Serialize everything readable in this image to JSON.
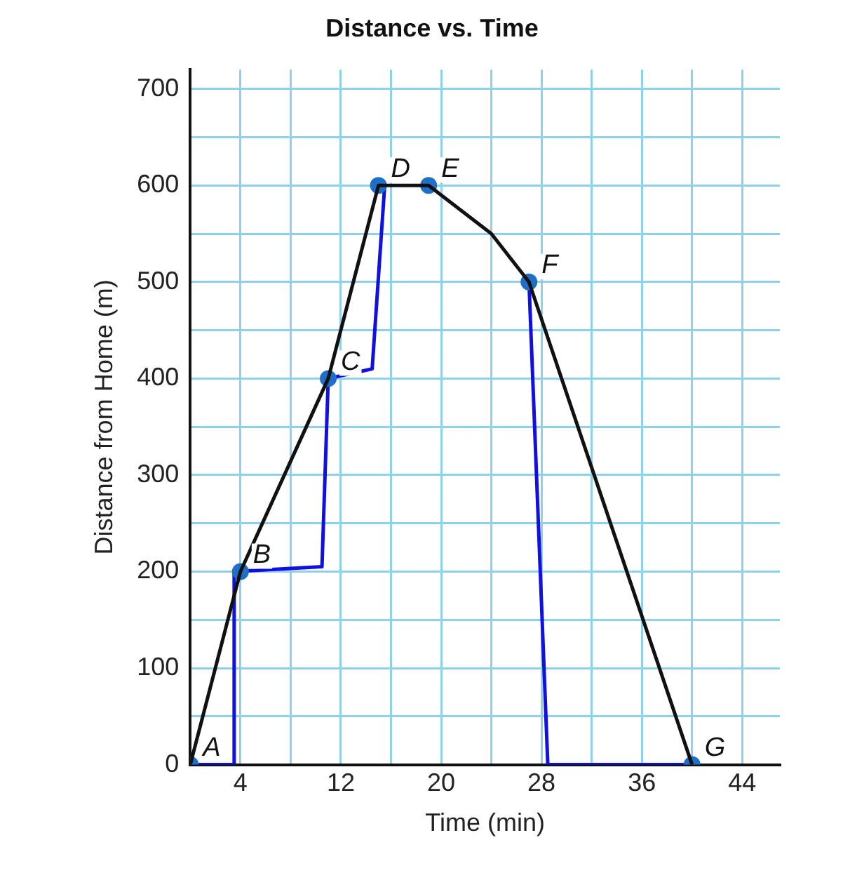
{
  "chart_data": {
    "type": "line",
    "title": "Distance vs. Time",
    "xlabel": "Time (min)",
    "ylabel": "Distance from Home (m)",
    "xlim": [
      0,
      47
    ],
    "ylim": [
      0,
      720
    ],
    "xticks": [
      {
        "value": 0,
        "label": null
      },
      4,
      {
        "value": 8,
        "label": null
      },
      12,
      {
        "value": 16,
        "label": null
      },
      20,
      {
        "value": 24,
        "label": null
      },
      28,
      {
        "value": 32,
        "label": null
      },
      36,
      {
        "value": 40,
        "label": null
      },
      44
    ],
    "yticks": [
      0,
      {
        "value": 50,
        "label": null
      },
      100,
      {
        "value": 150,
        "label": null
      },
      200,
      {
        "value": 250,
        "label": null
      },
      300,
      {
        "value": 350,
        "label": null
      },
      400,
      {
        "value": 450,
        "label": null
      },
      500,
      {
        "value": 550,
        "label": null
      },
      600,
      {
        "value": 650,
        "label": null
      },
      700
    ],
    "grid": true,
    "legend": false,
    "series": [
      {
        "color": "#111111",
        "marker": "none",
        "x": [
          0,
          4,
          11,
          15,
          19,
          24,
          27,
          40
        ],
        "values": [
          0,
          200,
          400,
          600,
          600,
          550,
          500,
          0
        ]
      },
      {
        "type": "scatter",
        "color": "#1f6fc8",
        "marker": "circle",
        "x": [
          0,
          4,
          11,
          15,
          19,
          27,
          40
        ],
        "values": [
          0,
          200,
          400,
          600,
          600,
          500,
          0
        ]
      },
      {
        "type": "line",
        "color": "#1010e0",
        "marker": "none",
        "x": [
          0,
          3.5,
          3.5,
          10.5,
          11,
          14.5,
          15.5,
          null,
          27,
          28.5,
          40
        ],
        "values": [
          0,
          0,
          200,
          205,
          400,
          410,
          600,
          null,
          500,
          0,
          0
        ]
      }
    ],
    "annotations": [
      {
        "text": "A",
        "x": 0,
        "y": 0
      },
      {
        "text": "B",
        "x": 4,
        "y": 200
      },
      {
        "text": "C",
        "x": 11,
        "y": 400
      },
      {
        "text": "D",
        "x": 15,
        "y": 600
      },
      {
        "text": "E",
        "x": 19,
        "y": 600
      },
      {
        "text": "F",
        "x": 27,
        "y": 500
      },
      {
        "text": "G",
        "x": 40,
        "y": 0
      }
    ]
  }
}
